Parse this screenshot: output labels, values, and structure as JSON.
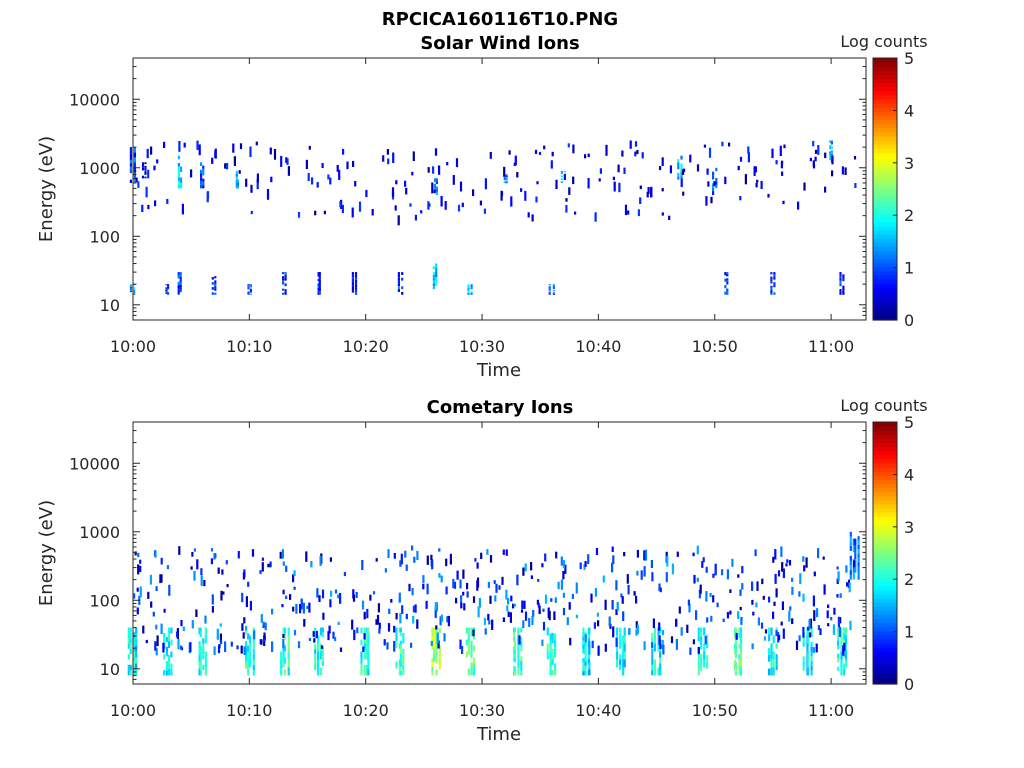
{
  "figure": {
    "title": "RPCICA160116T10.PNG"
  },
  "colormap": {
    "name": "jet",
    "label": "Log counts",
    "range": [
      0,
      5
    ],
    "ticks": [
      "0",
      "1",
      "2",
      "3",
      "4",
      "5"
    ]
  },
  "chart_data": [
    {
      "type": "heatmap",
      "title": "Solar Wind Ions",
      "xlabel": "Time",
      "ylabel": "Energy (eV)",
      "y_scale": "log",
      "xlim": [
        "10:00",
        "11:03"
      ],
      "ylim": [
        6,
        40000
      ],
      "x_tick_labels": [
        "10:00",
        "10:10",
        "10:20",
        "10:30",
        "10:40",
        "10:50",
        "11:00"
      ],
      "y_tick_labels": [
        "10",
        "100",
        "1000",
        "10000"
      ],
      "colorbar": {
        "label": "Log counts",
        "min": 0,
        "max": 5
      },
      "cells": [
        {
          "time": "10:00",
          "energy": [
            600,
            2000
          ],
          "log_counts": 1.0
        },
        {
          "time": "10:01",
          "energy": [
            700,
            1200
          ],
          "log_counts": 0.5
        },
        {
          "time": "10:00",
          "energy": [
            14,
            20
          ],
          "log_counts": 1.3
        },
        {
          "time": "10:03",
          "energy": [
            14,
            20
          ],
          "log_counts": 0.8
        },
        {
          "time": "10:04",
          "energy": [
            500,
            1500
          ],
          "log_counts": 1.8
        },
        {
          "time": "10:04",
          "energy": [
            14,
            30
          ],
          "log_counts": 0.9
        },
        {
          "time": "10:06",
          "energy": [
            500,
            1200
          ],
          "log_counts": 1.0
        },
        {
          "time": "10:07",
          "energy": [
            14,
            30
          ],
          "log_counts": 0.8
        },
        {
          "time": "10:09",
          "energy": [
            500,
            900
          ],
          "log_counts": 1.5
        },
        {
          "time": "10:10",
          "energy": [
            14,
            20
          ],
          "log_counts": 1.0
        },
        {
          "time": "10:13",
          "energy": [
            14,
            30
          ],
          "log_counts": 0.8
        },
        {
          "time": "10:16",
          "energy": [
            14,
            30
          ],
          "log_counts": 0.9
        },
        {
          "time": "10:19",
          "energy": [
            14,
            30
          ],
          "log_counts": 0.7
        },
        {
          "time": "10:23",
          "energy": [
            14,
            30
          ],
          "log_counts": 1.0
        },
        {
          "time": "10:26",
          "energy": [
            400,
            700
          ],
          "log_counts": 1.2
        },
        {
          "time": "10:26",
          "energy": [
            14,
            40
          ],
          "log_counts": 1.6
        },
        {
          "time": "10:29",
          "energy": [
            14,
            20
          ],
          "log_counts": 1.5
        },
        {
          "time": "10:32",
          "energy": [
            600,
            800
          ],
          "log_counts": 1.2
        },
        {
          "time": "10:36",
          "energy": [
            14,
            20
          ],
          "log_counts": 1.0
        },
        {
          "time": "10:37",
          "energy": [
            600,
            900
          ],
          "log_counts": 1.7
        },
        {
          "time": "10:47",
          "energy": [
            600,
            1500
          ],
          "log_counts": 1.6
        },
        {
          "time": "10:50",
          "energy": [
            400,
            1000
          ],
          "log_counts": 1.2
        },
        {
          "time": "10:51",
          "energy": [
            14,
            30
          ],
          "log_counts": 0.9
        },
        {
          "time": "10:55",
          "energy": [
            14,
            30
          ],
          "log_counts": 0.8
        },
        {
          "time": "11:00",
          "energy": [
            1200,
            2500
          ],
          "log_counts": 1.4
        },
        {
          "time": "11:01",
          "energy": [
            14,
            30
          ],
          "log_counts": 0.8
        }
      ]
    },
    {
      "type": "heatmap",
      "title": "Cometary Ions",
      "xlabel": "Time",
      "ylabel": "Energy (eV)",
      "y_scale": "log",
      "xlim": [
        "10:00",
        "11:03"
      ],
      "ylim": [
        6,
        40000
      ],
      "x_tick_labels": [
        "10:00",
        "10:10",
        "10:20",
        "10:30",
        "10:40",
        "10:50",
        "11:00"
      ],
      "y_tick_labels": [
        "10",
        "100",
        "1000",
        "10000"
      ],
      "colorbar": {
        "label": "Log counts",
        "min": 0,
        "max": 5
      },
      "pulse_times": [
        "10:00",
        "10:03",
        "10:06",
        "10:10",
        "10:13",
        "10:16",
        "10:20",
        "10:23",
        "10:26",
        "10:29",
        "10:33",
        "10:36",
        "10:39",
        "10:42",
        "10:45",
        "10:49",
        "10:52",
        "10:55",
        "10:58",
        "11:01"
      ],
      "cells": [
        {
          "time": "10:00",
          "energy": [
            8,
            40
          ],
          "log_counts": 1.8
        },
        {
          "time": "10:03",
          "energy": [
            8,
            40
          ],
          "log_counts": 1.8
        },
        {
          "time": "10:06",
          "energy": [
            8,
            40
          ],
          "log_counts": 1.9
        },
        {
          "time": "10:10",
          "energy": [
            8,
            40
          ],
          "log_counts": 2.0
        },
        {
          "time": "10:13",
          "energy": [
            8,
            40
          ],
          "log_counts": 2.1
        },
        {
          "time": "10:16",
          "energy": [
            8,
            40
          ],
          "log_counts": 2.0
        },
        {
          "time": "10:20",
          "energy": [
            8,
            40
          ],
          "log_counts": 2.0
        },
        {
          "time": "10:23",
          "energy": [
            8,
            40
          ],
          "log_counts": 2.1
        },
        {
          "time": "10:26",
          "energy": [
            8,
            40
          ],
          "log_counts": 2.7
        },
        {
          "time": "10:29",
          "energy": [
            8,
            40
          ],
          "log_counts": 2.3
        },
        {
          "time": "10:33",
          "energy": [
            8,
            40
          ],
          "log_counts": 2.1
        },
        {
          "time": "10:36",
          "energy": [
            8,
            40
          ],
          "log_counts": 2.1
        },
        {
          "time": "10:39",
          "energy": [
            8,
            40
          ],
          "log_counts": 1.8
        },
        {
          "time": "10:42",
          "energy": [
            8,
            40
          ],
          "log_counts": 1.8
        },
        {
          "time": "10:45",
          "energy": [
            8,
            40
          ],
          "log_counts": 1.9
        },
        {
          "time": "10:49",
          "energy": [
            8,
            40
          ],
          "log_counts": 2.0
        },
        {
          "time": "10:52",
          "energy": [
            8,
            40
          ],
          "log_counts": 2.2
        },
        {
          "time": "10:55",
          "energy": [
            8,
            40
          ],
          "log_counts": 1.9
        },
        {
          "time": "10:58",
          "energy": [
            8,
            40
          ],
          "log_counts": 1.8
        },
        {
          "time": "11:01",
          "energy": [
            8,
            40
          ],
          "log_counts": 2.0
        },
        {
          "time": "11:02",
          "energy": [
            200,
            1000
          ],
          "log_counts": 1.2
        }
      ]
    }
  ]
}
